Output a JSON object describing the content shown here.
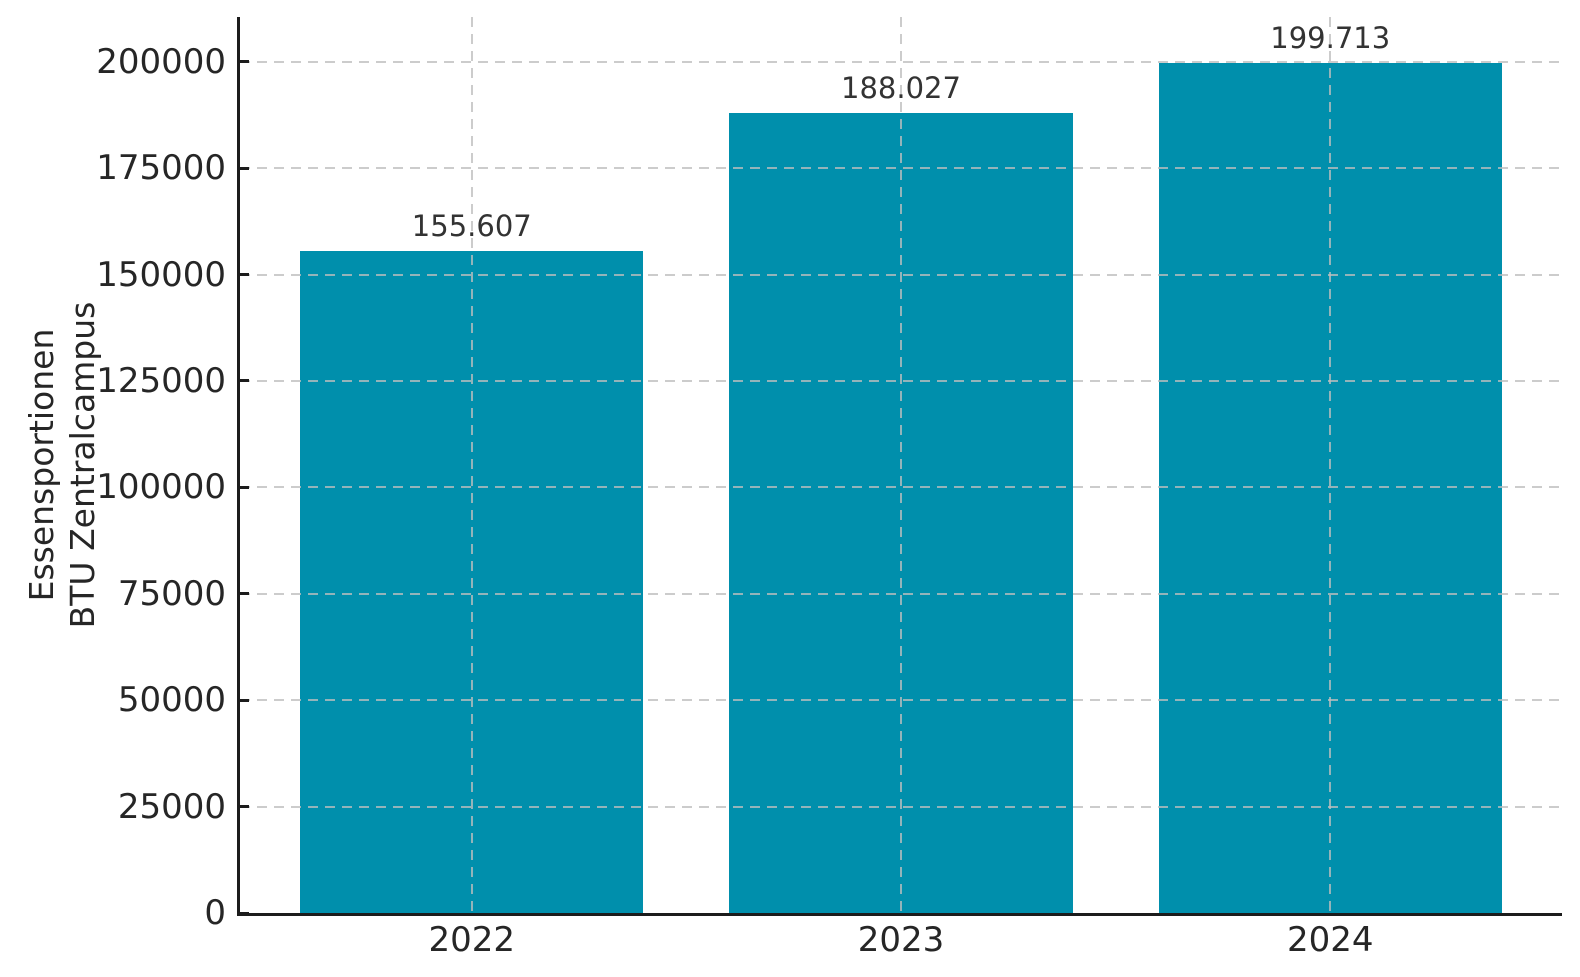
{
  "figure": {
    "background_color": "#ffffff",
    "text_color": "#262626",
    "spine_color": "#1c1c1c",
    "gridline_color": "#bebebe"
  },
  "chart_data": {
    "type": "bar",
    "title": "",
    "xlabel": "",
    "ylabel": "Essensportionen BTU Zentralcampus",
    "ylabel_lines": [
      "Essensportionen",
      "BTU Zentralcampus"
    ],
    "categories": [
      "2022",
      "2023",
      "2024"
    ],
    "values": [
      155607,
      188027,
      199713
    ],
    "value_labels": [
      "155.607",
      "188.027",
      "199.713"
    ],
    "yticks": [
      0,
      25000,
      50000,
      75000,
      100000,
      125000,
      150000,
      175000,
      200000
    ],
    "ytick_labels": [
      "0",
      "25000",
      "50000",
      "75000",
      "100000",
      "125000",
      "150000",
      "175000",
      "200000"
    ],
    "ylim": [
      0,
      210500
    ],
    "xlim": [
      -0.54,
      2.54
    ],
    "bar_width_units": 0.8,
    "bar_color": "#008fac",
    "grid": true,
    "grid_style": "dashed",
    "grid_on_top_of_bars": true,
    "legend_position": "none"
  }
}
